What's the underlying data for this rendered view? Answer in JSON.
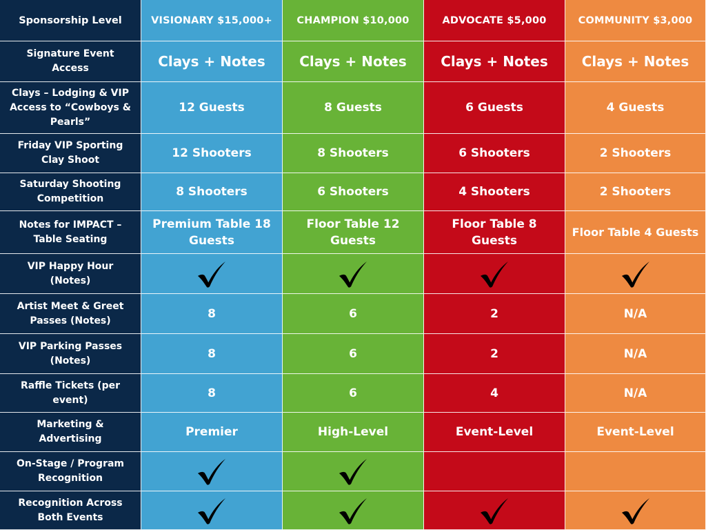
{
  "header": {
    "label": "Sponsorship Level",
    "tiers": [
      "VISIONARY $15,000+",
      "CHAMPION $10,000",
      "ADVOCATE $5,000",
      "COMMUNITY $3,000"
    ]
  },
  "colors": {
    "label_bg": "#0b2848",
    "visionary": "#42a3d2",
    "champion": "#68b337",
    "advocate": "#c40a19",
    "community": "#ee8a41",
    "text": "#ffffff"
  },
  "icons": {
    "included": "checkmark-icon"
  },
  "rows": [
    {
      "label": "Signature Event Access",
      "values": [
        "Clays + Notes",
        "Clays + Notes",
        "Clays + Notes",
        "Clays + Notes"
      ]
    },
    {
      "label": "Clays – Lodging & VIP Access to “Cowboys & Pearls”",
      "values": [
        "12 Guests",
        "8 Guests",
        "6 Guests",
        "4 Guests"
      ]
    },
    {
      "label": "Friday VIP Sporting Clay Shoot",
      "values": [
        "12 Shooters",
        "8 Shooters",
        "6 Shooters",
        "2 Shooters"
      ]
    },
    {
      "label": "Saturday Shooting Competition",
      "values": [
        "8 Shooters",
        "6 Shooters",
        "4 Shooters",
        "2 Shooters"
      ]
    },
    {
      "label": "Notes for IMPACT – Table Seating",
      "values": [
        "Premium Table 18 Guests",
        "Floor Table 12 Guests",
        "Floor Table 8 Guests",
        "Floor Table 4 Guests"
      ]
    },
    {
      "label": "VIP Happy Hour (Notes)",
      "values": [
        true,
        true,
        true,
        true
      ]
    },
    {
      "label": "Artist Meet & Greet Passes (Notes)",
      "values": [
        "8",
        "6",
        "2",
        "N/A"
      ]
    },
    {
      "label": "VIP Parking Passes (Notes)",
      "values": [
        "8",
        "6",
        "2",
        "N/A"
      ]
    },
    {
      "label": "Raffle Tickets (per event)",
      "values": [
        "8",
        "6",
        "4",
        "N/A"
      ]
    },
    {
      "label": "Marketing & Advertising",
      "values": [
        "Premier",
        "High-Level",
        "Event-Level",
        "Event-Level"
      ]
    },
    {
      "label": "On-Stage / Program Recognition",
      "values": [
        true,
        true,
        false,
        false
      ]
    },
    {
      "label": "Recognition Across Both Events",
      "values": [
        true,
        true,
        true,
        true
      ]
    }
  ]
}
